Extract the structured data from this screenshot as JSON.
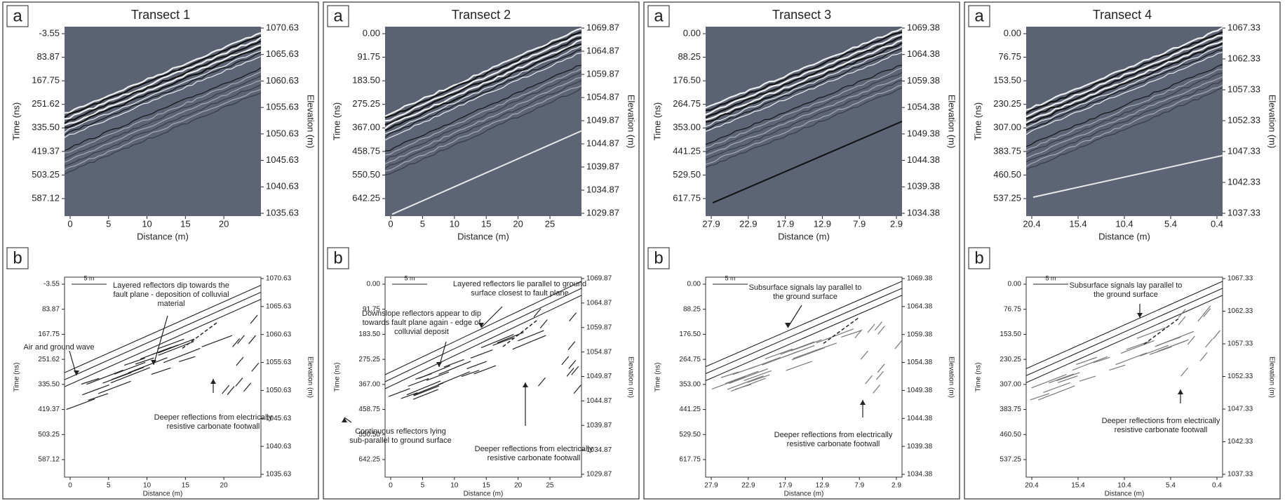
{
  "panels": [
    {
      "label_a": "a",
      "label_b": "b",
      "title": "Transect 1",
      "time_label": "Time (ns)",
      "elev_label": "Elevation (m)",
      "dist_label": "Distance (m)",
      "scale": "5 m",
      "time_ticks": [
        "-3.55",
        "83.87",
        "167.75",
        "251.62",
        "335.50",
        "419.37",
        "503.25",
        "587.12"
      ],
      "elev_ticks": [
        "1070.63",
        "1065.63",
        "1060.63",
        "1055.63",
        "1050.63",
        "1045.63",
        "1040.63",
        "1035.63"
      ],
      "dist_ticks": [
        "0",
        "5",
        "10",
        "15",
        "20"
      ],
      "annotations": [
        [
          "Layered reflectors dip towards the",
          "fault plane - deposition of colluvial",
          "material"
        ],
        [
          "Air and ground wave"
        ],
        [
          "Deeper reflections from electrically",
          "resistive carbonate footwall"
        ]
      ]
    },
    {
      "label_a": "a",
      "label_b": "b",
      "title": "Transect 2",
      "time_label": "Time (ns)",
      "elev_label": "Elevation (m)",
      "dist_label": "Distance (m)",
      "scale": "5 m",
      "time_ticks": [
        "0.00",
        "91.75",
        "183.50",
        "275.25",
        "367.00",
        "458.75",
        "550.50",
        "642.25"
      ],
      "elev_ticks": [
        "1069.87",
        "1064.87",
        "1059.87",
        "1054.87",
        "1049.87",
        "1044.87",
        "1039.87",
        "1034.87",
        "1029.87"
      ],
      "dist_ticks": [
        "0",
        "5",
        "10",
        "15",
        "20",
        "25"
      ],
      "annotations": [
        [
          "Layered reflectors lie parallel to ground",
          "surface closest to fault plane"
        ],
        [
          "Downslope reflectors appear to dip",
          "towards fault plane again - edge of",
          "colluvial deposit"
        ],
        [
          "Continuous reflectors lying",
          "sub-parallel to ground surface"
        ],
        [
          "Deeper reflections from electrically",
          "resistive carbonate footwall"
        ]
      ]
    },
    {
      "label_a": "a",
      "label_b": "b",
      "title": "Transect 3",
      "time_label": "Time (ns)",
      "elev_label": "Elevation (m)",
      "dist_label": "Distance (m)",
      "scale": "5 m",
      "time_ticks": [
        "0.00",
        "88.25",
        "176.50",
        "264.75",
        "353.00",
        "441.25",
        "529.50",
        "617.75"
      ],
      "elev_ticks": [
        "1069.38",
        "1064.38",
        "1059.38",
        "1054.38",
        "1049.38",
        "1044.38",
        "1039.38",
        "1034.38"
      ],
      "dist_ticks": [
        "27.9",
        "22.9",
        "17.9",
        "12.9",
        "7.9",
        "2.9"
      ],
      "annotations": [
        [
          "Subsurface signals lay parallel to",
          "the ground surface"
        ],
        [
          "Deeper reflections from electrically",
          "resistive carbonate footwall"
        ]
      ]
    },
    {
      "label_a": "a",
      "label_b": "b",
      "title": "Transect 4",
      "time_label": "Time (ns)",
      "elev_label": "Elevation (m)",
      "dist_label": "Distance (m)",
      "scale": "5 m",
      "time_ticks": [
        "0.00",
        "76.75",
        "153.50",
        "230.25",
        "307.00",
        "383.75",
        "460.50",
        "537.25"
      ],
      "elev_ticks": [
        "1067.33",
        "1062.33",
        "1057.33",
        "1052.33",
        "1047.33",
        "1042.33",
        "1037.33"
      ],
      "dist_ticks": [
        "20.4",
        "15.4",
        "10.4",
        "5.4",
        "0.4"
      ],
      "annotations": [
        [
          "Subsurface signals lay parallel to",
          "the ground surface"
        ],
        [
          "Deeper reflections from electrically",
          "resistive carbonate footwall"
        ]
      ]
    }
  ]
}
